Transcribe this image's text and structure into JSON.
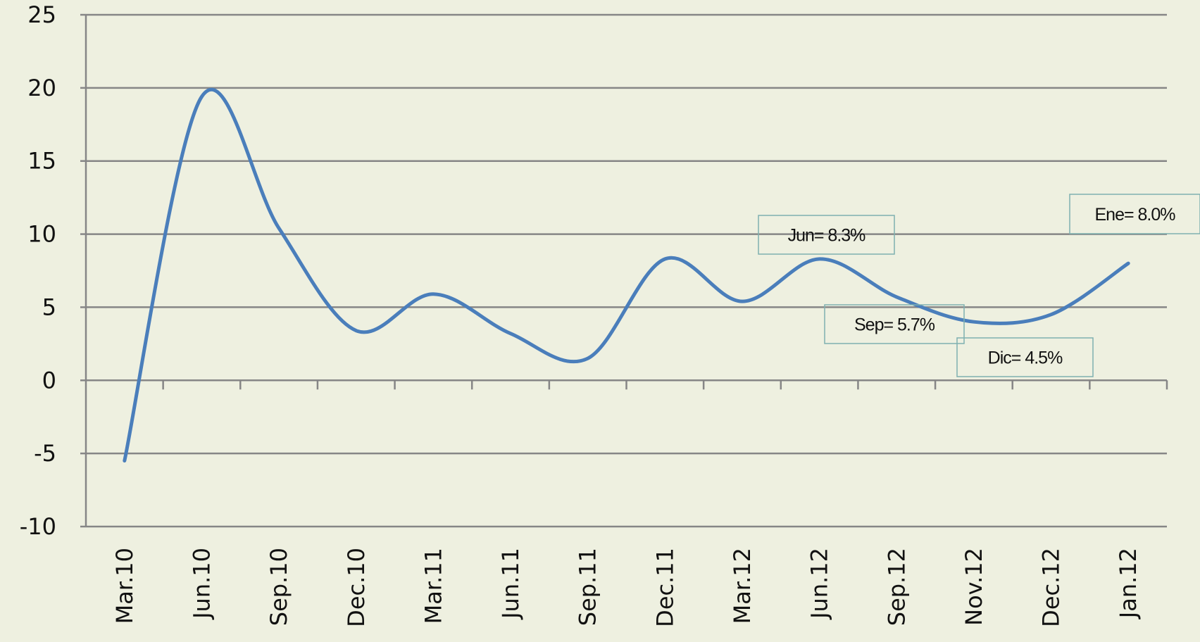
{
  "chart_data": {
    "type": "line",
    "categories": [
      "Mar.10",
      "Jun.10",
      "Sep.10",
      "Dec.10",
      "Mar.11",
      "Jun.11",
      "Sep.11",
      "Dec.11",
      "Mar.12",
      "Jun.12",
      "Sep.12",
      "Nov.12",
      "Dec.12",
      "Jan.12"
    ],
    "values": [
      -5.5,
      19.4,
      10.4,
      3.4,
      5.9,
      3.2,
      1.5,
      8.3,
      5.4,
      8.3,
      5.7,
      4.0,
      4.5,
      8.0
    ],
    "color": "#4a7ebb",
    "ylim": [
      -10,
      25
    ],
    "yticks": [
      -10,
      -5,
      0,
      5,
      10,
      15,
      20,
      25
    ],
    "grid": true,
    "annotations": [
      "Jun= 8.3%",
      "Sep= 5.7%",
      "Dic= 4.5%",
      "Ene= 8.0%"
    ]
  }
}
